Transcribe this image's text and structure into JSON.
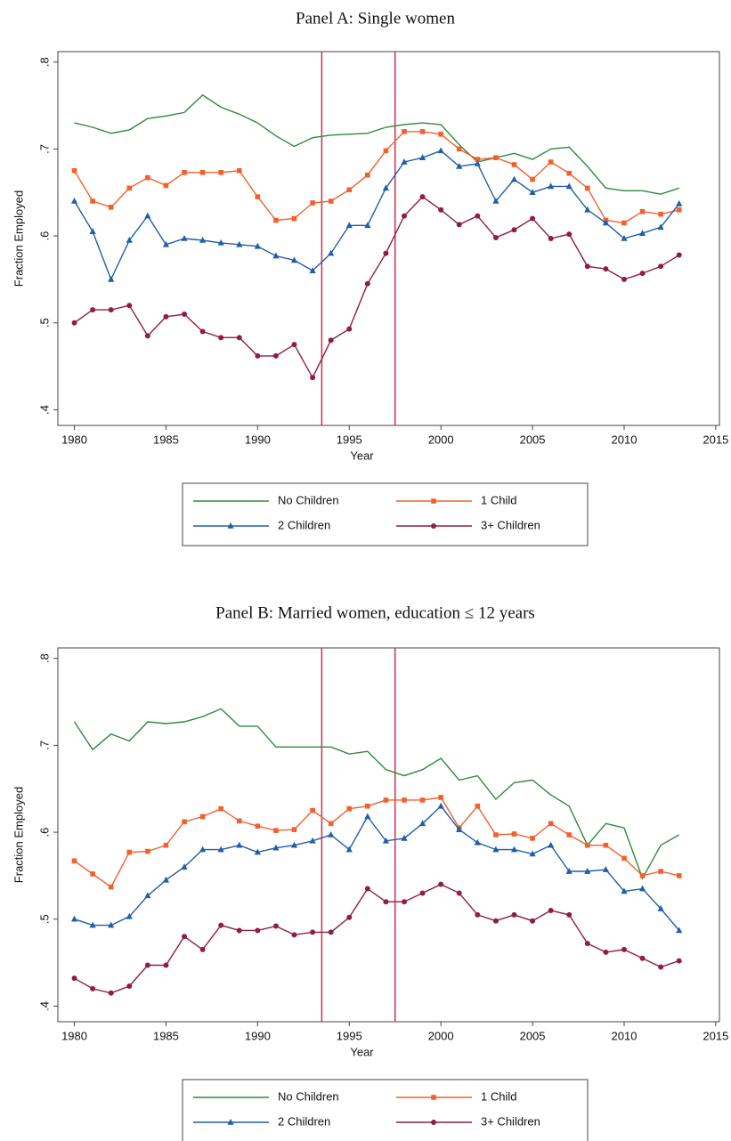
{
  "chart_data": [
    {
      "type": "line",
      "title": "Panel A:  Single women",
      "x_label": "Year",
      "y_label": "Fraction Employed",
      "x": [
        1980,
        1981,
        1982,
        1983,
        1984,
        1985,
        1986,
        1987,
        1988,
        1989,
        1990,
        1991,
        1992,
        1993,
        1994,
        1995,
        1996,
        1997,
        1998,
        1999,
        2000,
        2001,
        2002,
        2003,
        2004,
        2005,
        2006,
        2007,
        2008,
        2009,
        2010,
        2011,
        2012,
        2013
      ],
      "xlim": [
        1979.1,
        2015.2
      ],
      "xticks": [
        1980,
        1985,
        1990,
        1995,
        2000,
        2005,
        2010,
        2015
      ],
      "ylim": [
        0.382,
        0.812
      ],
      "yticks": [
        {
          "value": 0.4,
          "label": ".4"
        },
        {
          "value": 0.5,
          "label": ".5"
        },
        {
          "value": 0.6,
          "label": ".6"
        },
        {
          "value": 0.7,
          "label": ".7"
        },
        {
          "value": 0.8,
          "label": ".8"
        }
      ],
      "vlines": [
        1993.5,
        1997.5
      ],
      "vline_color": "#c8324e",
      "series": [
        {
          "name": "No Children",
          "color": "#2f8a3c",
          "marker": "none",
          "values": [
            0.73,
            0.725,
            0.718,
            0.722,
            0.735,
            0.738,
            0.742,
            0.762,
            0.748,
            0.74,
            0.73,
            0.715,
            0.703,
            0.713,
            0.716,
            0.717,
            0.718,
            0.725,
            0.728,
            0.73,
            0.728,
            0.705,
            0.685,
            0.69,
            0.695,
            0.688,
            0.7,
            0.702,
            0.68,
            0.655,
            0.652,
            0.652,
            0.648,
            0.655
          ]
        },
        {
          "name": "1 Child",
          "color": "#f2602e",
          "marker": "square",
          "values": [
            0.675,
            0.64,
            0.633,
            0.655,
            0.667,
            0.658,
            0.673,
            0.673,
            0.673,
            0.675,
            0.645,
            0.618,
            0.62,
            0.638,
            0.64,
            0.653,
            0.67,
            0.698,
            0.72,
            0.72,
            0.717,
            0.7,
            0.688,
            0.69,
            0.682,
            0.665,
            0.685,
            0.672,
            0.655,
            0.618,
            0.615,
            0.628,
            0.625,
            0.63
          ]
        },
        {
          "name": "2 Children",
          "color": "#215fa5",
          "marker": "triangle",
          "values": [
            0.64,
            0.605,
            0.55,
            0.595,
            0.623,
            0.59,
            0.597,
            0.595,
            0.592,
            0.59,
            0.588,
            0.577,
            0.572,
            0.56,
            0.58,
            0.612,
            0.612,
            0.655,
            0.685,
            0.69,
            0.698,
            0.68,
            0.683,
            0.64,
            0.665,
            0.65,
            0.657,
            0.657,
            0.63,
            0.615,
            0.597,
            0.603,
            0.61,
            0.637
          ]
        },
        {
          "name": "3+ Children",
          "color": "#8e1f3e",
          "marker": "circle",
          "values": [
            0.5,
            0.515,
            0.515,
            0.52,
            0.485,
            0.507,
            0.51,
            0.49,
            0.483,
            0.483,
            0.462,
            0.462,
            0.475,
            0.437,
            0.48,
            0.493,
            0.545,
            0.58,
            0.623,
            0.645,
            0.63,
            0.613,
            0.623,
            0.598,
            0.607,
            0.62,
            0.597,
            0.602,
            0.565,
            0.562,
            0.55,
            0.557,
            0.565,
            0.578
          ]
        }
      ]
    },
    {
      "type": "line",
      "title": "Panel B:  Married women, education ≤ 12 years",
      "x_label": "Year",
      "y_label": "Fraction Employed",
      "x": [
        1980,
        1981,
        1982,
        1983,
        1984,
        1985,
        1986,
        1987,
        1988,
        1989,
        1990,
        1991,
        1992,
        1993,
        1994,
        1995,
        1996,
        1997,
        1998,
        1999,
        2000,
        2001,
        2002,
        2003,
        2004,
        2005,
        2006,
        2007,
        2008,
        2009,
        2010,
        2011,
        2012,
        2013
      ],
      "xlim": [
        1979.1,
        2015.2
      ],
      "xticks": [
        1980,
        1985,
        1990,
        1995,
        2000,
        2005,
        2010,
        2015
      ],
      "ylim": [
        0.382,
        0.812
      ],
      "yticks": [
        {
          "value": 0.4,
          "label": ".4"
        },
        {
          "value": 0.5,
          "label": ".5"
        },
        {
          "value": 0.6,
          "label": ".6"
        },
        {
          "value": 0.7,
          "label": ".7"
        },
        {
          "value": 0.8,
          "label": ".8"
        }
      ],
      "vlines": [
        1993.5,
        1997.5
      ],
      "vline_color": "#c8324e",
      "series": [
        {
          "name": "No Children",
          "color": "#2f8a3c",
          "marker": "none",
          "values": [
            0.727,
            0.695,
            0.713,
            0.705,
            0.727,
            0.725,
            0.727,
            0.733,
            0.742,
            0.722,
            0.722,
            0.698,
            0.698,
            0.698,
            0.698,
            0.69,
            0.693,
            0.672,
            0.665,
            0.672,
            0.685,
            0.66,
            0.665,
            0.638,
            0.657,
            0.66,
            0.643,
            0.63,
            0.585,
            0.61,
            0.605,
            0.547,
            0.585,
            0.597
          ]
        },
        {
          "name": "1 Child",
          "color": "#f2602e",
          "marker": "square",
          "values": [
            0.567,
            0.552,
            0.537,
            0.577,
            0.578,
            0.585,
            0.612,
            0.618,
            0.627,
            0.613,
            0.607,
            0.602,
            0.603,
            0.625,
            0.61,
            0.627,
            0.63,
            0.637,
            0.637,
            0.637,
            0.64,
            0.605,
            0.63,
            0.597,
            0.598,
            0.593,
            0.61,
            0.597,
            0.585,
            0.585,
            0.57,
            0.55,
            0.555,
            0.55
          ]
        },
        {
          "name": "2 Children",
          "color": "#215fa5",
          "marker": "triangle",
          "values": [
            0.5,
            0.493,
            0.493,
            0.503,
            0.527,
            0.545,
            0.56,
            0.58,
            0.58,
            0.585,
            0.577,
            0.582,
            0.585,
            0.59,
            0.597,
            0.58,
            0.618,
            0.59,
            0.593,
            0.61,
            0.63,
            0.603,
            0.588,
            0.58,
            0.58,
            0.575,
            0.585,
            0.555,
            0.555,
            0.557,
            0.532,
            0.535,
            0.512,
            0.487
          ]
        },
        {
          "name": "3+ Children",
          "color": "#8e1f3e",
          "marker": "circle",
          "values": [
            0.432,
            0.42,
            0.415,
            0.423,
            0.447,
            0.447,
            0.48,
            0.465,
            0.493,
            0.487,
            0.487,
            0.492,
            0.482,
            0.485,
            0.485,
            0.502,
            0.535,
            0.52,
            0.52,
            0.53,
            0.54,
            0.53,
            0.505,
            0.498,
            0.505,
            0.498,
            0.51,
            0.505,
            0.472,
            0.462,
            0.465,
            0.455,
            0.445,
            0.452
          ]
        }
      ]
    }
  ]
}
